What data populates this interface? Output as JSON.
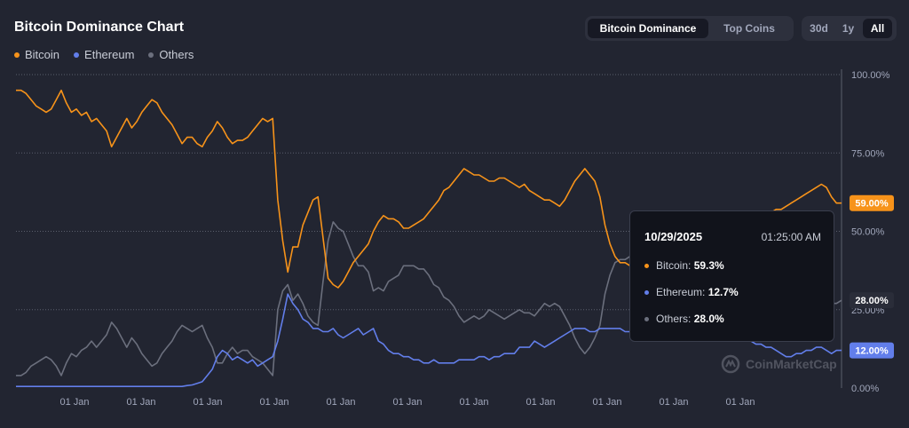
{
  "header": {
    "title": "Bitcoin Dominance Chart"
  },
  "view_tabs": [
    {
      "label": "Bitcoin Dominance",
      "active": true
    },
    {
      "label": "Top Coins",
      "active": false
    }
  ],
  "range_tabs": [
    {
      "label": "30d",
      "active": false
    },
    {
      "label": "1y",
      "active": false
    },
    {
      "label": "All",
      "active": true
    }
  ],
  "tooltip": {
    "date": "10/29/2025",
    "time": "01:25:00 AM",
    "rows": [
      {
        "name": "Bitcoin",
        "value": "59.3%",
        "color": "#f7931a"
      },
      {
        "name": "Ethereum",
        "value": "12.7%",
        "color": "#627eea"
      },
      {
        "name": "Others",
        "value": "28.0%",
        "color": "#6b6f7d"
      }
    ]
  },
  "watermark": {
    "text": "CoinMarketCap"
  },
  "chart_data": {
    "type": "line",
    "x_tick_labels": [
      "01 Jan",
      "01 Jan",
      "01 Jan",
      "01 Jan",
      "01 Jan",
      "01 Jan",
      "01 Jan",
      "01 Jan",
      "01 Jan",
      "01 Jan",
      "01 Jan"
    ],
    "y_ticks": [
      "100.00%",
      "75.00%",
      "50.00%",
      "25.00%",
      "0.00%"
    ],
    "ylim": [
      0,
      100
    ],
    "y_unit": "%",
    "legend_position": "top-left",
    "grid": true,
    "series": [
      {
        "name": "Bitcoin",
        "color": "#f7931a",
        "last_label": "59.00%",
        "last_value": 59.0,
        "values": [
          95,
          95,
          94,
          92,
          90,
          89,
          88,
          89,
          92,
          95,
          91,
          88,
          89,
          87,
          88,
          85,
          86,
          84,
          82,
          77,
          80,
          83,
          86,
          83,
          85,
          88,
          90,
          92,
          91,
          88,
          86,
          84,
          81,
          78,
          80,
          80,
          78,
          77,
          80,
          82,
          85,
          83,
          80,
          78,
          79,
          79,
          80,
          82,
          84,
          86,
          85,
          86,
          60,
          47,
          37,
          45,
          45,
          52,
          56,
          60,
          61,
          48,
          35,
          33,
          32,
          34,
          37,
          40,
          42,
          44,
          46,
          50,
          53,
          55,
          54,
          54,
          53,
          51,
          51,
          52,
          53,
          54,
          56,
          58,
          60,
          63,
          64,
          66,
          68,
          70,
          69,
          68,
          68,
          67,
          66,
          66,
          67,
          67,
          66,
          65,
          64,
          65,
          63,
          62,
          61,
          60,
          60,
          59,
          58,
          60,
          63,
          66,
          68,
          70,
          68,
          66,
          61,
          52,
          46,
          42,
          40,
          40,
          39,
          41,
          42,
          43,
          42,
          41,
          40,
          40,
          40,
          40,
          41,
          42,
          42,
          43,
          43,
          42,
          42,
          42,
          44,
          49,
          51,
          50,
          52,
          53,
          54,
          55,
          55,
          56,
          56,
          57,
          57,
          58,
          59,
          60,
          61,
          62,
          63,
          64,
          65,
          64,
          61,
          59,
          59
        ]
      },
      {
        "name": "Ethereum",
        "color": "#627eea",
        "last_label": "12.00%",
        "last_value": 12.0,
        "values": [
          0.5,
          0.5,
          0.5,
          0.5,
          0.5,
          0.5,
          0.5,
          0.5,
          0.5,
          0.5,
          0.5,
          0.5,
          0.5,
          0.5,
          0.5,
          0.5,
          0.5,
          0.5,
          0.5,
          0.5,
          0.5,
          0.5,
          0.5,
          0.5,
          0.5,
          0.5,
          0.5,
          0.5,
          0.5,
          0.5,
          0.5,
          0.5,
          0.5,
          0.5,
          0.8,
          1,
          1.5,
          2,
          4,
          6,
          10,
          12,
          11,
          9,
          10,
          9,
          8,
          9,
          7,
          8,
          9,
          10,
          15,
          22,
          30,
          27,
          25,
          22,
          21,
          19,
          19,
          18,
          18,
          19,
          17,
          16,
          17,
          18,
          19,
          17,
          18,
          19,
          15,
          14,
          12,
          11,
          11,
          10,
          10,
          9,
          9,
          8,
          8,
          9,
          8,
          8,
          8,
          8,
          9,
          9,
          9,
          9,
          10,
          10,
          9,
          10,
          10,
          11,
          11,
          11,
          13,
          13,
          13,
          15,
          14,
          13,
          14,
          15,
          16,
          17,
          18,
          19,
          19,
          19,
          18,
          18,
          19,
          19,
          19,
          19,
          19,
          18,
          18,
          18,
          19,
          18,
          17,
          18,
          19,
          19,
          19,
          18,
          18,
          19,
          19,
          18,
          18,
          18,
          18,
          18,
          17,
          17,
          16,
          17,
          16,
          16,
          15,
          14,
          14,
          13,
          13,
          12,
          11,
          10,
          10,
          11,
          11,
          12,
          12,
          13,
          13,
          12,
          11,
          12,
          12
        ]
      },
      {
        "name": "Others",
        "color": "#6b6f7d",
        "last_label": "28.00%",
        "last_value": 28.0,
        "values": [
          4,
          4,
          5,
          7,
          8,
          9,
          10,
          9,
          7,
          4,
          8,
          11,
          10,
          12,
          13,
          15,
          13,
          15,
          17,
          21,
          19,
          16,
          13,
          16,
          14,
          11,
          9,
          7,
          8,
          11,
          13,
          15,
          18,
          20,
          19,
          18,
          19,
          20,
          16,
          13,
          8,
          8,
          11,
          13,
          11,
          12,
          12,
          10,
          9,
          8,
          6,
          4,
          25,
          31,
          33,
          28,
          30,
          27,
          23,
          21,
          20,
          34,
          47,
          53,
          51,
          50,
          46,
          42,
          39,
          39,
          37,
          31,
          32,
          31,
          34,
          35,
          36,
          39,
          39,
          39,
          38,
          38,
          36,
          33,
          32,
          29,
          28,
          26,
          23,
          21,
          22,
          23,
          22,
          23,
          25,
          24,
          23,
          22,
          23,
          24,
          25,
          24,
          24,
          23,
          25,
          27,
          26,
          27,
          26,
          23,
          20,
          16,
          13,
          11,
          13,
          16,
          20,
          30,
          36,
          40,
          41,
          41,
          42,
          40,
          39,
          38,
          38,
          40,
          41,
          40,
          40,
          40,
          40,
          39,
          39,
          38,
          38,
          39,
          39,
          38,
          37,
          33,
          31,
          32,
          31,
          29,
          28,
          27,
          26,
          27,
          26,
          26,
          26,
          25,
          25,
          26,
          26,
          26,
          27,
          27,
          27,
          27,
          27,
          27,
          28
        ]
      }
    ]
  }
}
